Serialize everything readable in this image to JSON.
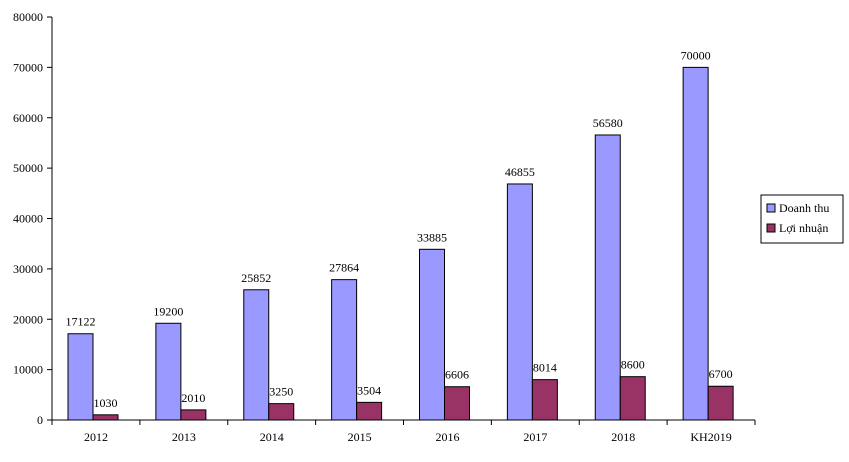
{
  "chart_data": {
    "type": "bar",
    "categories": [
      "2012",
      "2013",
      "2014",
      "2015",
      "2016",
      "2017",
      "2018",
      "KH2019"
    ],
    "series": [
      {
        "name": "Doanh thu",
        "values": [
          17122,
          19200,
          25852,
          27864,
          33885,
          46855,
          56580,
          70000
        ],
        "color": "#9999ff"
      },
      {
        "name": "Lợi nhuận",
        "values": [
          1030,
          2010,
          3250,
          3504,
          6606,
          8014,
          8600,
          6700
        ],
        "color": "#993366"
      }
    ],
    "ylim": [
      0,
      80000
    ],
    "yticks": [
      0,
      10000,
      20000,
      30000,
      40000,
      50000,
      60000,
      70000,
      80000
    ],
    "legend_position": "right",
    "grid": false,
    "title": "",
    "xlabel": "",
    "ylabel": ""
  }
}
